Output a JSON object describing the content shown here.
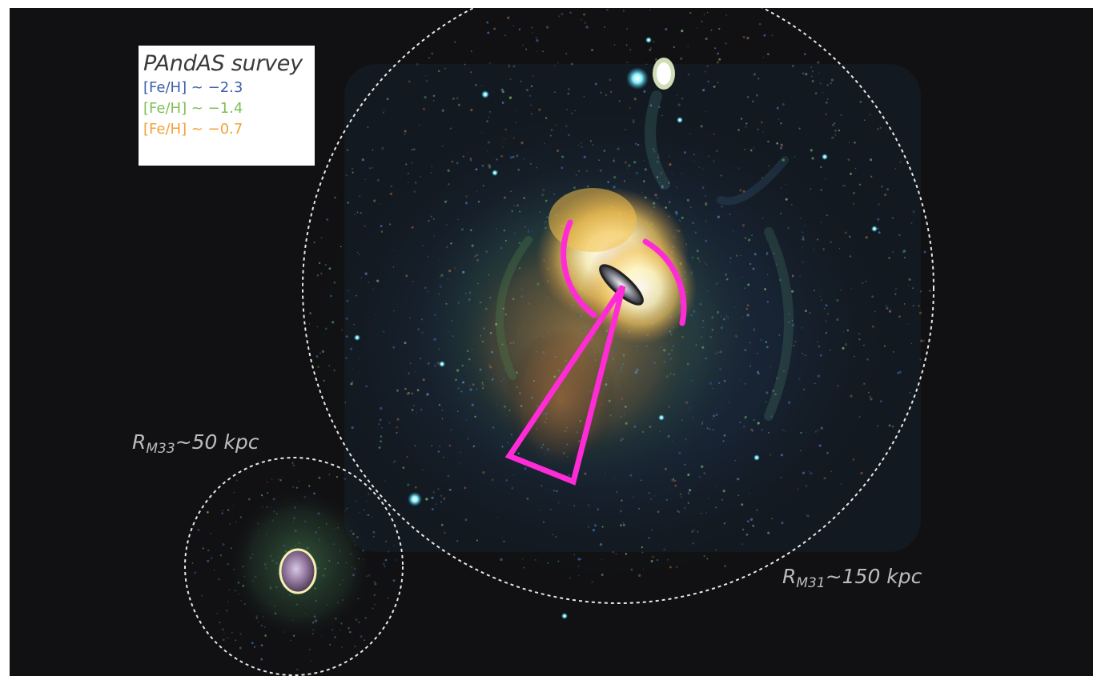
{
  "legend": {
    "title": "PAndAS survey",
    "entries": [
      {
        "text": "[Fe/H] ~ −2.3",
        "color": "#3d5fa8"
      },
      {
        "text": "[Fe/H] ~ −1.4",
        "color": "#7fbf55"
      },
      {
        "text": "[Fe/H] ~ −0.7",
        "color": "#f2a23a"
      }
    ]
  },
  "labels": {
    "m33": {
      "symbol": "R",
      "subscript": "M33",
      "value": "~50 kpc"
    },
    "m31": {
      "symbol": "R",
      "subscript": "M31",
      "value": "~150 kpc"
    }
  },
  "colors": {
    "background": "#111113",
    "overlay": "#ff2bd6",
    "circle": "#e8e8e8"
  }
}
